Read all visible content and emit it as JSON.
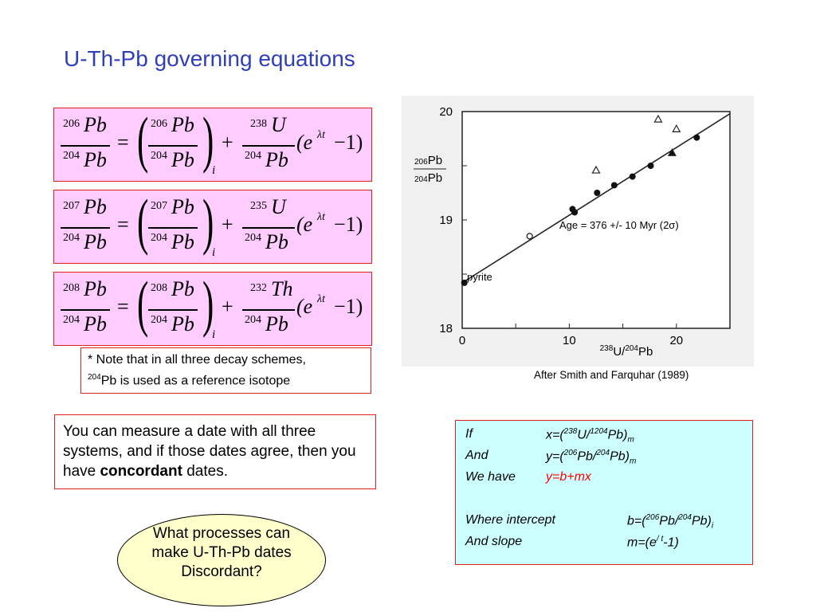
{
  "title": "U-Th-Pb governing equations",
  "equations": [
    {
      "lhs_num_sup": "206",
      "lhs_num": "Pb",
      "lhs_den_sup": "204",
      "lhs_den": "Pb",
      "eq": "=",
      "p_num_sup": "206",
      "p_num": "Pb",
      "p_den_sup": "204",
      "p_den": "Pb",
      "sub": "i",
      "plus": "+",
      "r_num_sup": "238",
      "r_num": "U",
      "r_den_sup": "204",
      "r_den": "Pb",
      "exp_open": "(e",
      "exp_sup": "λt",
      "exp_close": "−1)"
    },
    {
      "lhs_num_sup": "207",
      "lhs_num": "Pb",
      "lhs_den_sup": "204",
      "lhs_den": "Pb",
      "eq": "=",
      "p_num_sup": "207",
      "p_num": "Pb",
      "p_den_sup": "204",
      "p_den": "Pb",
      "sub": "i",
      "plus": "+",
      "r_num_sup": "235",
      "r_num": "U",
      "r_den_sup": "204",
      "r_den": "Pb",
      "exp_open": "(e",
      "exp_sup": "λt",
      "exp_close": "−1)"
    },
    {
      "lhs_num_sup": "208",
      "lhs_num": "Pb",
      "lhs_den_sup": "204",
      "lhs_den": "Pb",
      "eq": "=",
      "p_num_sup": "208",
      "p_num": "Pb",
      "p_den_sup": "204",
      "p_den": "Pb",
      "sub": "i",
      "plus": "+",
      "r_num_sup": "232",
      "r_num": "Th",
      "r_den_sup": "204",
      "r_den": "Pb",
      "exp_open": "(e",
      "exp_sup": "λt",
      "exp_close": "−1)"
    }
  ],
  "note": {
    "line1": "* Note that in all three decay schemes,",
    "sup": "204",
    "line2": "Pb is used as a reference isotope"
  },
  "caption": "After Smith and Farquhar (1989)",
  "concordant": {
    "text": "You can measure a date with all three systems, and if those dates agree, then you have ",
    "bold": "concordant",
    "tail": " dates."
  },
  "panel": {
    "if": "If",
    "x_pre": "x=(",
    "x_sup1": "238",
    "x_mid": "U/",
    "x_sup2": "1204",
    "x_post": "Pb)",
    "x_sub": "m",
    "and": "And",
    "y_pre": "y=(",
    "y_sup1": "206",
    "y_mid": "Pb/",
    "y_sup2": "204",
    "y_post": "Pb)",
    "y_sub": "m",
    "we_have": "We have",
    "line_eq": "y=b+mx",
    "where": "Where intercept",
    "b_pre": "b=(",
    "b_sup1": "206",
    "b_mid": "Pb/",
    "b_sup2": "204",
    "b_post": "Pb)",
    "b_sub": "i",
    "slope": "And slope",
    "m_pre": "m=(e",
    "m_sup": "/ t",
    "m_post": "-1)",
    "accent_color": "#ff0000"
  },
  "question": {
    "line1": "What processes can",
    "line2": "make U-Th-Pb dates",
    "line3": "Discordant?"
  },
  "chart_data": {
    "type": "scatter",
    "xlim": [
      0,
      25
    ],
    "ylim": [
      18,
      20
    ],
    "xticks": [
      "0",
      "10",
      "20"
    ],
    "yticks": [
      "18",
      "19",
      "20"
    ],
    "xlabel_sup": "238",
    "xlabel_a": "U/",
    "xlabel_sup2": "204",
    "xlabel_b": "Pb",
    "ylabel_num_sup": "206",
    "ylabel_num": "Pb",
    "ylabel_den_sup": "204",
    "ylabel_den": "Pb",
    "annotation": "Age = 376 +/- 10 Myr (2σ)",
    "point_label": "pyrite",
    "line": {
      "x": [
        0,
        25
      ],
      "y": [
        18.42,
        19.98
      ]
    },
    "filled_circles": {
      "x": [
        0.2,
        10.3,
        10.5,
        12.6,
        14.2,
        15.9,
        17.6,
        21.9
      ],
      "y": [
        18.42,
        19.1,
        19.07,
        19.25,
        19.32,
        19.4,
        19.5,
        19.76
      ]
    },
    "open_circles": {
      "x": [
        6.3
      ],
      "y": [
        18.85
      ]
    },
    "open_triangles": {
      "x": [
        12.5,
        18.3,
        20.0
      ],
      "y": [
        19.46,
        19.93,
        19.84
      ]
    },
    "filled_triangles": {
      "x": [
        19.6
      ],
      "y": [
        19.62
      ]
    }
  }
}
